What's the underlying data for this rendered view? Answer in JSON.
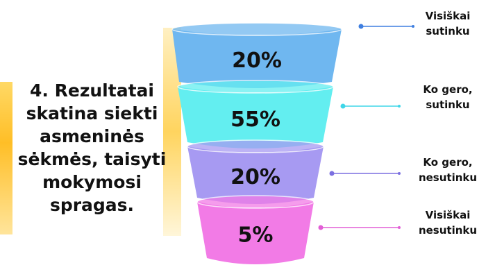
{
  "question": "4. Rezultatai\nskatina siekti\nasmeninės\nsėkmės, taisyti\nmokymosi\nspragas.",
  "chart_data": {
    "type": "funnel",
    "categories": [
      "Visiškai sutinku",
      "Ko gero, sutinku",
      "Ko gero, nesutinku",
      "Visiškai nesutinku"
    ],
    "values": [
      20,
      55,
      20,
      5
    ],
    "value_labels": [
      "20%",
      "55%",
      "20%",
      "5%"
    ],
    "legend_lines": [
      [
        "Visiškai",
        "sutinku"
      ],
      [
        "Ko gero,",
        "sutinku"
      ],
      [
        "Ko gero,",
        "nesutinku"
      ],
      [
        "Visiškai",
        "nesutinku"
      ]
    ],
    "colors": [
      "#6fb7f0",
      "#63eef0",
      "#a79af2",
      "#f27be6"
    ],
    "connector_colors": [
      "#3f7fe0",
      "#3fd6e8",
      "#7b6fe0",
      "#e25fd6"
    ]
  }
}
